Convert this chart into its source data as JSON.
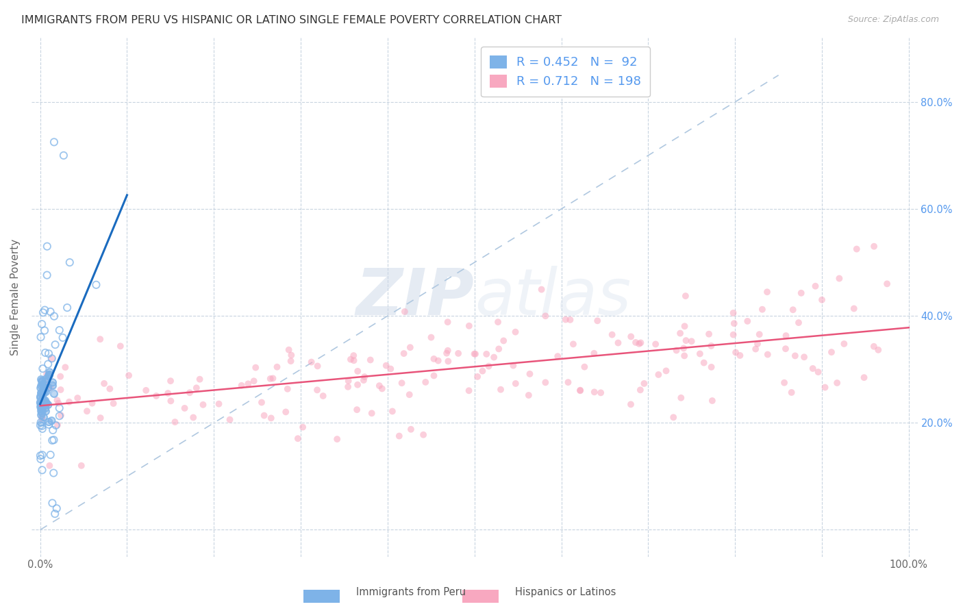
{
  "title": "IMMIGRANTS FROM PERU VS HISPANIC OR LATINO SINGLE FEMALE POVERTY CORRELATION CHART",
  "source": "Source: ZipAtlas.com",
  "ylabel": "Single Female Poverty",
  "xlim": [
    -0.01,
    1.01
  ],
  "ylim": [
    -0.05,
    0.92
  ],
  "xtick_positions": [
    0.0,
    0.1,
    0.2,
    0.3,
    0.4,
    0.5,
    0.6,
    0.7,
    0.8,
    0.9,
    1.0
  ],
  "xticklabels": [
    "0.0%",
    "",
    "",
    "",
    "",
    "",
    "",
    "",
    "",
    "",
    "100.0%"
  ],
  "ytick_positions": [
    0.0,
    0.2,
    0.4,
    0.6,
    0.8
  ],
  "ytick_labels_right": [
    "",
    "20.0%",
    "40.0%",
    "60.0%",
    "80.0%"
  ],
  "legend_R1": "0.452",
  "legend_N1": "92",
  "legend_R2": "0.712",
  "legend_N2": "198",
  "series1_color": "#7eb3e8",
  "series2_color": "#f8a8c0",
  "trendline1_color": "#1a6bbf",
  "trendline2_color": "#e8547a",
  "diagonal_color": "#b0c8e0",
  "watermark_zip": "ZIP",
  "watermark_atlas": "atlas",
  "background_color": "#ffffff",
  "grid_color": "#c8d4e0",
  "series1_label": "Immigrants from Peru",
  "series2_label": "Hispanics or Latinos",
  "title_color": "#333333",
  "axis_label_color": "#666666",
  "right_tick_color": "#5599ee",
  "scatter1_size": 55,
  "scatter2_size": 50,
  "scatter_alpha": 0.55
}
